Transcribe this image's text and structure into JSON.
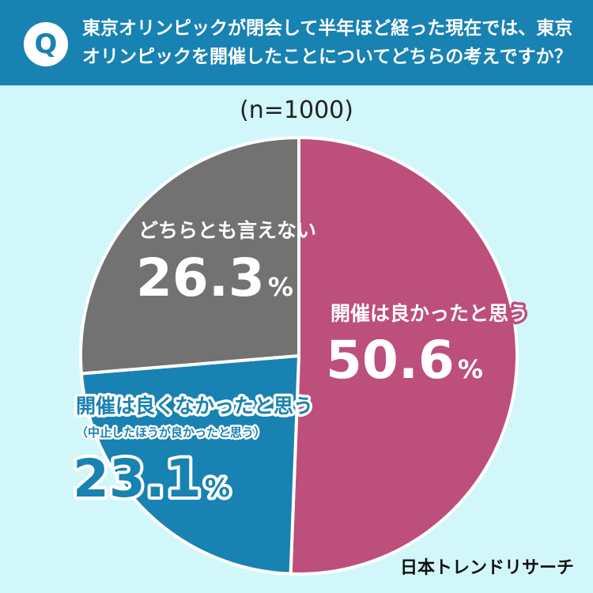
{
  "question": {
    "badge": "Q",
    "text": "東京オリンピックが閉会して半年ほど経った現在では、東京オリンピックを開催したことについてどちらの考えですか？"
  },
  "sample_size": "(n=1000)",
  "brand": "日本トレンドリサーチ",
  "colors": {
    "header_bg": "#1882b2",
    "page_bg": "#d2f7fb",
    "good": "#bd4f7d",
    "bad": "#1882b2",
    "neutral": "#727272"
  },
  "chart_data": {
    "type": "pie",
    "start": "12 o'clock, clockwise",
    "slices": [
      {
        "label": "開催は良かったと思う",
        "sublabel": "",
        "value": 50.6,
        "display": "50.6",
        "unit": "%",
        "color": "#bd4f7d"
      },
      {
        "label": "開催は良くなかったと思う",
        "sublabel": "（中止したほうが良かったと思う）",
        "value": 23.1,
        "display": "23.1",
        "unit": "%",
        "color": "#1882b2"
      },
      {
        "label": "どちらとも言えない",
        "sublabel": "",
        "value": 26.3,
        "display": "26.3",
        "unit": "%",
        "color": "#727272"
      }
    ]
  }
}
